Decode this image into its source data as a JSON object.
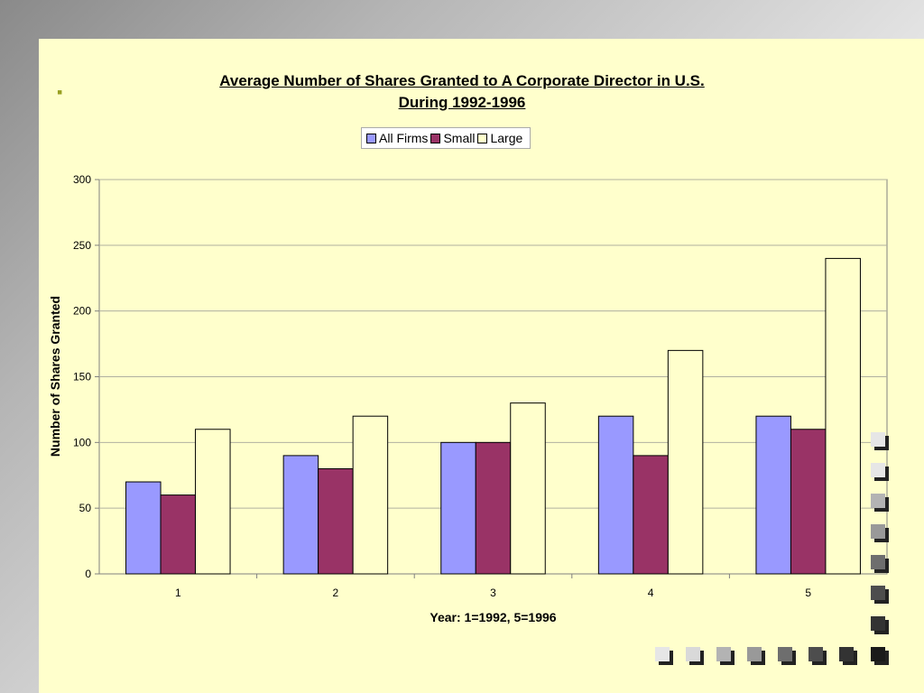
{
  "slide": {
    "bullet": "▪"
  },
  "chart_data": {
    "type": "bar",
    "title": "Average Number of Shares Granted to A Corporate Director in U.S.\n During 1992-1996",
    "xlabel": "Year:  1=1992,  5=1996",
    "ylabel": "Number of Shares Granted",
    "categories": [
      "1",
      "2",
      "3",
      "4",
      "5"
    ],
    "ylim": [
      0,
      300
    ],
    "yticks": [
      0,
      50,
      100,
      150,
      200,
      250,
      300
    ],
    "grid": true,
    "legend_position": "top-center",
    "series": [
      {
        "name": "All Firms",
        "color": "#9999ff",
        "values": [
          70,
          90,
          100,
          120,
          120
        ]
      },
      {
        "name": "Small",
        "color": "#993366",
        "values": [
          60,
          80,
          100,
          90,
          110
        ]
      },
      {
        "name": "Large",
        "color": "#ffffcc",
        "values": [
          110,
          120,
          130,
          170,
          240
        ]
      }
    ]
  },
  "decoration": {
    "square_colors_column": [
      "#e6e6e6",
      "#e6e6e6",
      "#b3b3b3",
      "#999999",
      "#6e6e6e",
      "#4d4d4d",
      "#333333",
      "#1a1a1a"
    ],
    "square_colors_row": [
      "#e6e6e6",
      "#d9d9d9",
      "#b3b3b3",
      "#999999",
      "#6e6e6e",
      "#4d4d4d",
      "#333333",
      "#1a1a1a"
    ]
  }
}
